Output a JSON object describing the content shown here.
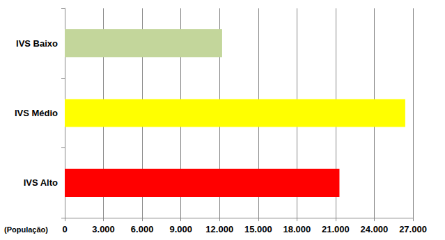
{
  "chart_data": {
    "type": "bar",
    "orientation": "horizontal",
    "categories": [
      "IVS Baixo",
      "IVS Médio",
      "IVS Alto"
    ],
    "values": [
      12200,
      26400,
      21300
    ],
    "colors": [
      "#c3d69b",
      "#ffff00",
      "#ff0000"
    ],
    "x_label": "(População)",
    "xlim": [
      0,
      27000
    ],
    "xticks": [
      0,
      {
        "value": 3000,
        "label": "3.000"
      },
      {
        "value": 6000,
        "label": "6.000"
      },
      {
        "value": 9000,
        "label": "9.000"
      },
      {
        "value": 12000,
        "label": "12.000"
      },
      {
        "value": 15000,
        "label": "15.000"
      },
      {
        "value": 18000,
        "label": "18.000"
      },
      {
        "value": 21000,
        "label": "21.000"
      },
      {
        "value": 24000,
        "label": "24.000"
      },
      {
        "value": 27000,
        "label": "27.000"
      }
    ],
    "grid": true
  }
}
